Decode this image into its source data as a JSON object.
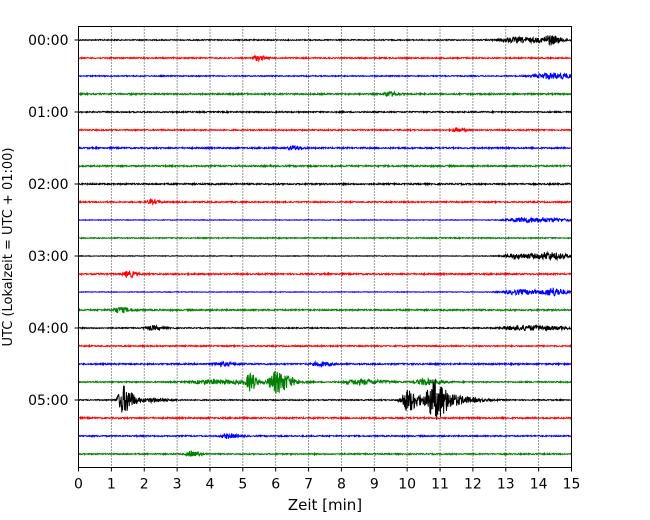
{
  "chart_data": {
    "type": "line",
    "xlabel": "Zeit  [min]",
    "ylabel": "UTC (Lokalzeit = UTC + 01:00)",
    "xlim": [
      0,
      15
    ],
    "x_ticks": [
      0,
      1,
      2,
      3,
      4,
      5,
      6,
      7,
      8,
      9,
      10,
      11,
      12,
      13,
      14,
      15
    ],
    "x_tick_labels": [
      "0",
      "1",
      "2",
      "3",
      "4",
      "5",
      "6",
      "7",
      "8",
      "9",
      "10",
      "11",
      "12",
      "13",
      "14",
      "15"
    ],
    "y_tick_labels": [
      "00:00",
      "01:00",
      "02:00",
      "03:00",
      "04:00",
      "05:00"
    ],
    "grid": "vertical dotted at each minute",
    "color_cycle": [
      "#000000",
      "#ff0000",
      "#0000ff",
      "#008000"
    ],
    "traces": [
      {
        "start": "00:00",
        "noise": 0.5,
        "events": [
          {
            "t": 13.3,
            "amp": 2.5,
            "width": 0.9
          },
          {
            "t": 14.3,
            "amp": 4,
            "width": 0.25
          }
        ]
      },
      {
        "start": "00:15",
        "noise": 0.6,
        "events": [
          {
            "t": 5.4,
            "amp": 2.5,
            "width": 0.2
          }
        ]
      },
      {
        "start": "00:30",
        "noise": 0.5,
        "events": [
          {
            "t": 14.3,
            "amp": 3,
            "width": 0.7
          }
        ]
      },
      {
        "start": "00:45",
        "noise": 0.7,
        "events": [
          {
            "t": 9.4,
            "amp": 2.5,
            "width": 0.2
          }
        ]
      },
      {
        "start": "01:00",
        "noise": 0.6,
        "events": []
      },
      {
        "start": "01:15",
        "noise": 0.6,
        "events": [
          {
            "t": 11.5,
            "amp": 2,
            "width": 0.2
          }
        ]
      },
      {
        "start": "01:30",
        "noise": 0.7,
        "events": [
          {
            "t": 6.5,
            "amp": 2,
            "width": 0.2
          }
        ]
      },
      {
        "start": "01:45",
        "noise": 0.7,
        "events": []
      },
      {
        "start": "02:00",
        "noise": 0.7,
        "events": []
      },
      {
        "start": "02:15",
        "noise": 0.6,
        "events": [
          {
            "t": 2.2,
            "amp": 2,
            "width": 0.2
          }
        ]
      },
      {
        "start": "02:30",
        "noise": 0.3,
        "events": [
          {
            "t": 13.6,
            "amp": 2.5,
            "width": 0.9
          }
        ]
      },
      {
        "start": "02:45",
        "noise": 0.5,
        "events": []
      },
      {
        "start": "03:00",
        "noise": 0.3,
        "events": [
          {
            "t": 13.4,
            "amp": 2.5,
            "width": 0.8
          },
          {
            "t": 14.3,
            "amp": 3,
            "width": 0.4
          }
        ]
      },
      {
        "start": "03:15",
        "noise": 0.7,
        "events": [
          {
            "t": 1.5,
            "amp": 3,
            "width": 0.2
          }
        ]
      },
      {
        "start": "03:30",
        "noise": 0.3,
        "events": [
          {
            "t": 13.4,
            "amp": 2.5,
            "width": 0.8
          },
          {
            "t": 14.4,
            "amp": 3.5,
            "width": 0.3
          }
        ]
      },
      {
        "start": "03:45",
        "noise": 0.7,
        "events": [
          {
            "t": 1.2,
            "amp": 2.5,
            "width": 0.3
          }
        ]
      },
      {
        "start": "04:00",
        "noise": 0.5,
        "events": [
          {
            "t": 2.2,
            "amp": 2,
            "width": 0.3
          },
          {
            "t": 13.5,
            "amp": 2.5,
            "width": 1
          }
        ]
      },
      {
        "start": "04:15",
        "noise": 0.6,
        "events": []
      },
      {
        "start": "04:30",
        "noise": 0.7,
        "events": [
          {
            "t": 4.3,
            "amp": 2,
            "width": 0.3
          },
          {
            "t": 7.3,
            "amp": 2,
            "width": 0.3
          }
        ]
      },
      {
        "start": "04:45",
        "noise": 0.6,
        "events": [
          {
            "t": 4.0,
            "amp": 2,
            "width": 1
          },
          {
            "t": 5.2,
            "amp": 9,
            "width": 0.15
          },
          {
            "t": 6.0,
            "amp": 11,
            "width": 0.35
          },
          {
            "t": 8.5,
            "amp": 2.5,
            "width": 0.6
          },
          {
            "t": 10.5,
            "amp": 3,
            "width": 0.4
          }
        ]
      },
      {
        "start": "05:00",
        "noise": 0.5,
        "events": [
          {
            "t": 1.35,
            "amp": 14,
            "width": 0.25
          },
          {
            "t": 2.2,
            "amp": 2,
            "width": 0.4
          },
          {
            "t": 10.0,
            "amp": 11,
            "width": 0.3
          },
          {
            "t": 10.8,
            "amp": 20,
            "width": 0.35
          },
          {
            "t": 11.6,
            "amp": 3,
            "width": 0.5
          }
        ]
      },
      {
        "start": "05:15",
        "noise": 0.7,
        "events": []
      },
      {
        "start": "05:30",
        "noise": 0.6,
        "events": [
          {
            "t": 4.5,
            "amp": 2,
            "width": 0.3
          }
        ]
      },
      {
        "start": "05:45",
        "noise": 0.6,
        "events": [
          {
            "t": 3.4,
            "amp": 2.5,
            "width": 0.2
          }
        ]
      }
    ]
  }
}
